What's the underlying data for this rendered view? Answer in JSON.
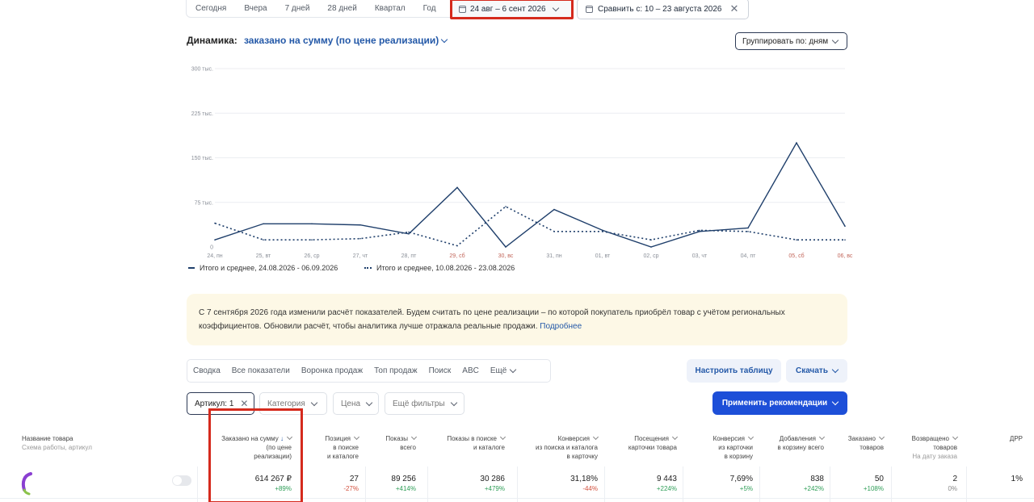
{
  "period": {
    "buttons": [
      "Сегодня",
      "Вчера",
      "7 дней",
      "28 дней",
      "Квартал",
      "Год"
    ],
    "date_range": "24 авг – 6 сент 2026",
    "compare": "Сравнить с: 10 – 23 августа 2026"
  },
  "dynamics": {
    "title": "Динамика:",
    "metric": "заказано на сумму (по цене реализации)",
    "group_by": "Группировать по: дням"
  },
  "chart_data": {
    "type": "line",
    "categories": [
      "24, пн",
      "25, вт",
      "26, ср",
      "27, чт",
      "28, пт",
      "29, сб",
      "30, вс",
      "31, пн",
      "01, вт",
      "02, ср",
      "03, чт",
      "04, пт",
      "05, сб",
      "06, вс"
    ],
    "weekend": [
      false,
      false,
      false,
      false,
      false,
      true,
      true,
      false,
      false,
      false,
      false,
      false,
      true,
      true
    ],
    "y_ticks": [
      "0",
      "75 тыс.",
      "150 тыс.",
      "225 тыс.",
      "300 тыс."
    ],
    "ylim": [
      0,
      300000
    ],
    "series": [
      {
        "name": "Итого и среднее, 24.08.2026 - 06.09.2026",
        "style": "solid",
        "values": [
          12000,
          39000,
          39000,
          37000,
          22000,
          100000,
          0,
          63000,
          28000,
          0,
          26000,
          32000,
          175000,
          35000
        ]
      },
      {
        "name": "Итого и среднее, 10.08.2026 - 23.08.2026",
        "style": "dotted",
        "values": [
          40000,
          12000,
          12000,
          14000,
          25000,
          2000,
          68000,
          26000,
          26000,
          12000,
          28000,
          26000,
          12000,
          12000
        ]
      }
    ],
    "grid": true,
    "color": "#1f3f6b"
  },
  "notice": {
    "text": "С 7 сентября 2026 года изменили расчёт показателей. Будем считать по цене реализации – по которой покупатель приобрёл товар с учётом региональных коэффициентов. Обновили расчёт, чтобы аналитика лучше отражала реальные продажи.",
    "link": "Подробнее"
  },
  "tabs": [
    "Сводка",
    "Все показатели",
    "Воронка продаж",
    "Топ продаж",
    "Поиск",
    "ABC",
    "Ещё"
  ],
  "actions": {
    "configure": "Настроить таблицу",
    "download": "Скачать",
    "apply": "Применить рекомендации"
  },
  "filters": {
    "article": "Артикул: 1",
    "category": "Категория",
    "price": "Цена",
    "more": "Ещё фильтры"
  },
  "table": {
    "first_header": "Название товара",
    "first_sub": "Схема работы, артикул",
    "headers": [
      [
        "Заказано на сумму",
        "(по цене",
        "реализации)"
      ],
      [
        "Позиция",
        "в поиске",
        "и каталоге"
      ],
      [
        "Показы",
        "всего"
      ],
      [
        "Показы в поиске",
        "и каталоге"
      ],
      [
        "Конверсия",
        "из поиска и каталога",
        "в карточку"
      ],
      [
        "Посещения",
        "карточки товара"
      ],
      [
        "Конверсия",
        "из карточки",
        "в корзину"
      ],
      [
        "Добавления",
        "в корзину всего"
      ],
      [
        "Заказано",
        "товаров"
      ],
      [
        "Возвращено",
        "товаров"
      ],
      [
        "ДРР"
      ]
    ],
    "return_sub": "На дату заказа",
    "row": [
      {
        "value": "614 267 ₽",
        "delta": "+89%",
        "sign": "pos"
      },
      {
        "value": "27",
        "delta": "-27%",
        "sign": "neg"
      },
      {
        "value": "89 256",
        "delta": "+414%",
        "sign": "pos"
      },
      {
        "value": "30 286",
        "delta": "+479%",
        "sign": "pos"
      },
      {
        "value": "31,18%",
        "delta": "-44%",
        "sign": "neg"
      },
      {
        "value": "9 443",
        "delta": "+224%",
        "sign": "pos"
      },
      {
        "value": "7,69%",
        "delta": "+5%",
        "sign": "pos"
      },
      {
        "value": "838",
        "delta": "+242%",
        "sign": "pos"
      },
      {
        "value": "50",
        "delta": "+108%",
        "sign": "pos"
      },
      {
        "value": "2",
        "delta": "0%",
        "sign": "zero"
      },
      {
        "value": "1%",
        "delta": "",
        "sign": "zero"
      }
    ]
  }
}
